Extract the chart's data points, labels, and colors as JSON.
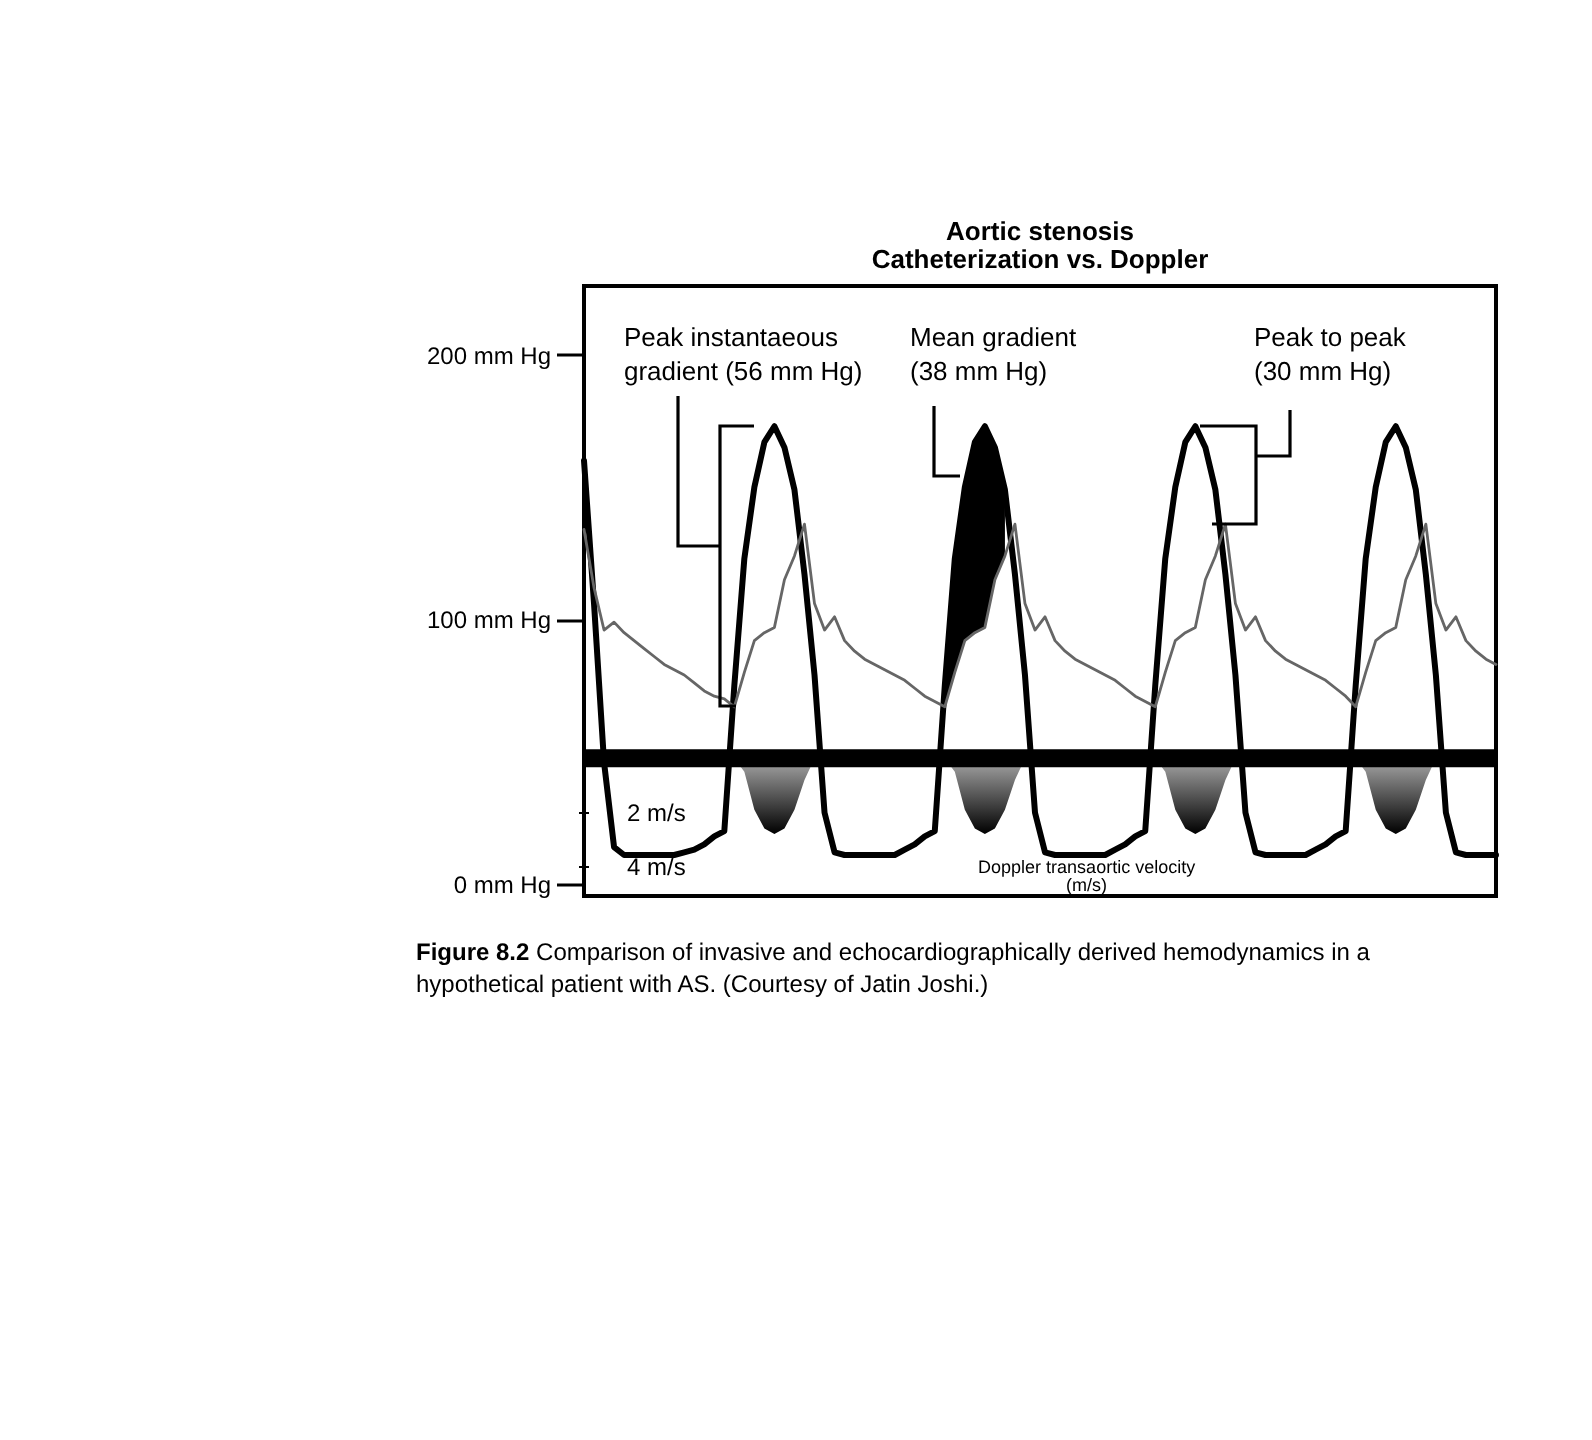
{
  "chart_data": {
    "type": "line",
    "title": "Aortic stenosis",
    "subtitle": "Catheterization vs. Doppler",
    "y2label": "Doppler transaortic velocity\n(m/s)",
    "annotations": [
      "Peak instantaeous\ngradient (56 mm Hg)",
      "Mean gradient\n(38 mm Hg)",
      "Peak to peak\n(30 mm Hg)",
      "Figure 8.2  Comparison of invasive and echocardiographically derived hemodynamics in a hypothetical patient with AS. (Courtesy of Jatin Joshi.)"
    ],
    "categories": [
      null,
      null,
      null,
      null,
      null,
      null,
      null,
      null,
      null,
      null,
      null,
      null,
      null,
      null,
      null,
      null,
      null,
      null,
      null,
      null,
      null,
      null,
      null,
      null,
      null,
      null,
      null,
      null,
      null,
      null,
      null,
      null,
      null,
      null,
      null,
      null,
      null,
      null,
      null,
      null,
      null,
      null,
      null,
      null,
      null,
      null,
      null,
      null,
      null,
      null,
      null,
      null,
      null,
      null,
      null,
      null,
      null,
      null,
      null,
      null,
      null,
      null,
      null,
      null,
      null,
      null,
      null,
      null,
      null,
      null,
      null,
      null,
      null,
      null,
      null,
      null,
      null,
      null,
      null,
      null,
      null,
      null,
      null,
      null,
      null,
      null,
      null,
      null,
      null,
      null,
      null,
      null
    ],
    "series": [
      {
        "color": "#000000",
        "values": [
          160,
          106,
          46,
          14,
          11,
          11,
          11,
          11,
          11,
          11,
          12,
          13,
          15,
          18,
          20,
          75,
          123,
          150,
          167,
          173,
          165,
          149,
          117,
          79,
          27,
          12,
          11,
          11,
          11,
          11,
          11,
          11,
          13,
          15,
          18,
          20,
          75,
          123,
          150,
          167,
          173,
          165,
          149,
          117,
          79,
          27,
          12,
          11,
          11,
          11,
          11,
          11,
          11,
          13,
          15,
          18,
          20,
          75,
          123,
          150,
          167,
          173,
          165,
          149,
          117,
          79,
          27,
          12,
          11,
          11,
          11,
          11,
          11,
          13,
          15,
          18,
          20,
          75,
          123,
          150,
          167,
          173,
          165,
          149,
          117,
          79,
          27,
          12,
          11,
          11,
          11,
          11
        ]
      },
      {
        "color": "#666666",
        "lower": [
          null,
          null,
          null,
          null,
          null,
          null,
          null,
          null,
          null,
          null,
          null,
          null,
          null,
          null,
          null,
          null,
          null,
          null,
          null,
          null,
          null,
          null,
          null,
          null,
          null,
          null,
          null,
          null,
          null,
          null,
          null,
          null,
          null,
          null,
          null,
          null,
          67,
          80,
          92,
          95,
          97,
          115,
          124,
          null,
          null,
          null,
          null,
          null,
          null,
          null,
          null,
          null,
          null,
          null,
          null,
          null,
          null,
          null,
          null,
          null,
          null,
          null,
          null,
          null,
          null,
          null,
          null,
          null,
          null,
          null,
          null,
          null,
          null,
          null,
          null,
          null,
          null,
          null,
          null,
          null,
          null,
          null,
          null,
          null,
          null,
          null,
          null,
          null,
          null,
          null,
          null,
          null
        ],
        "upper": [
          null,
          null,
          null,
          null,
          null,
          null,
          null,
          null,
          null,
          null,
          null,
          null,
          null,
          null,
          null,
          null,
          null,
          null,
          null,
          null,
          null,
          null,
          null,
          null,
          null,
          null,
          null,
          null,
          null,
          null,
          null,
          null,
          null,
          null,
          null,
          null,
          75,
          123,
          150,
          167,
          173,
          165,
          149,
          null,
          null,
          null,
          null,
          null,
          null,
          null,
          null,
          null,
          null,
          null,
          null,
          null,
          null,
          null,
          null,
          null,
          null,
          null,
          null,
          null,
          null,
          null,
          null,
          null,
          null,
          null,
          null,
          null,
          null,
          null,
          null,
          null,
          null,
          null,
          null,
          null,
          null,
          null,
          null,
          null,
          null,
          null,
          null,
          null,
          null,
          null,
          null,
          null
        ],
        "values": [
          134,
          112,
          96,
          99,
          95,
          92,
          89,
          86,
          83,
          81,
          79,
          76,
          73,
          71,
          70,
          67,
          80,
          92,
          95,
          97,
          115,
          124,
          136,
          106,
          96,
          101,
          92,
          88,
          85,
          83,
          81,
          79,
          77,
          74,
          71,
          69,
          67,
          80,
          92,
          95,
          97,
          115,
          124,
          136,
          106,
          96,
          101,
          92,
          88,
          85,
          83,
          81,
          79,
          77,
          74,
          71,
          69,
          67,
          80,
          92,
          95,
          97,
          115,
          124,
          136,
          106,
          96,
          101,
          92,
          88,
          85,
          83,
          81,
          79,
          77,
          74,
          71,
          67,
          80,
          92,
          95,
          97,
          115,
          124,
          136,
          106,
          96,
          101,
          92,
          88,
          85,
          83
        ]
      },
      {
        "type": "area",
        "axis": "y2",
        "color": "#000000",
        "values": [
          null,
          null,
          null,
          null,
          null,
          null,
          null,
          null,
          null,
          null,
          null,
          null,
          null,
          null,
          null,
          0,
          0.5,
          1.9,
          2.6,
          2.8,
          2.6,
          1.9,
          0.8,
          0,
          null,
          null,
          null,
          null,
          null,
          null,
          null,
          null,
          null,
          null,
          null,
          null,
          0,
          0.5,
          1.9,
          2.6,
          2.8,
          2.6,
          1.9,
          0.8,
          0,
          null,
          null,
          null,
          null,
          null,
          null,
          null,
          null,
          null,
          null,
          null,
          null,
          0,
          0.5,
          1.9,
          2.6,
          2.8,
          2.6,
          1.9,
          0.8,
          0,
          null,
          null,
          null,
          null,
          null,
          null,
          null,
          null,
          null,
          null,
          null,
          0,
          0.5,
          1.9,
          2.6,
          2.8,
          2.6,
          1.9,
          0.8,
          0,
          null,
          null,
          null,
          null,
          null,
          null
        ]
      }
    ],
    "ylim": [
      -4.5,
      226
    ],
    "yticks": [
      {
        "value": 0,
        "label": "0 mm Hg"
      },
      {
        "value": 100,
        "label": "100 mm Hg"
      },
      {
        "value": 200,
        "label": "200 mm Hg"
      }
    ],
    "y2lim": [
      5.1,
      -17.5
    ],
    "y2ticks": [
      {
        "value": 2,
        "label": "2 m/s"
      },
      {
        "value": 4,
        "label": "4 m/s"
      }
    ],
    "ref_lines": [
      {
        "axis": "y2",
        "value": 0,
        "color": "#000000"
      }
    ],
    "grid": false
  }
}
